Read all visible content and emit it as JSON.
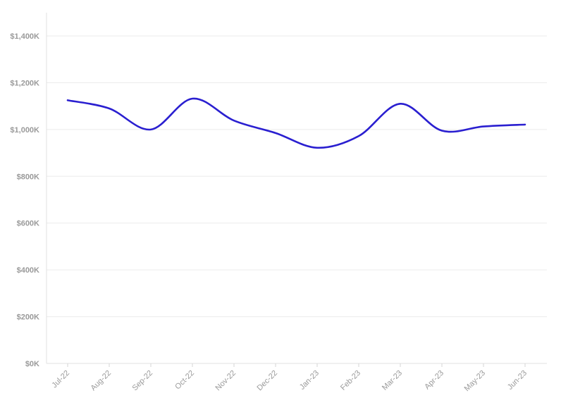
{
  "chart_data": {
    "type": "line",
    "categories": [
      "Jul-22",
      "Aug-22",
      "Sep-22",
      "Oct-22",
      "Nov-22",
      "Dec-22",
      "Jan-23",
      "Feb-23",
      "Mar-23",
      "Apr-23",
      "May-23",
      "Jun-23"
    ],
    "series": [
      {
        "values": [
          1125000,
          1090000,
          1000000,
          1132000,
          1038000,
          985000,
          922000,
          972000,
          1110000,
          995000,
          1013000,
          1021000
        ],
        "color": "#2a1fd0"
      }
    ],
    "y_ticks": [
      0,
      200000,
      400000,
      600000,
      800000,
      1000000,
      1200000,
      1400000
    ],
    "y_tick_labels": [
      "$0K",
      "$200K",
      "$400K",
      "$600K",
      "$800K",
      "$1,000K",
      "$1,200K",
      "$1,400K"
    ],
    "ylim": [
      0,
      1400000
    ],
    "grid": true,
    "legend": "none",
    "title": "",
    "xlabel": "",
    "ylabel": ""
  }
}
